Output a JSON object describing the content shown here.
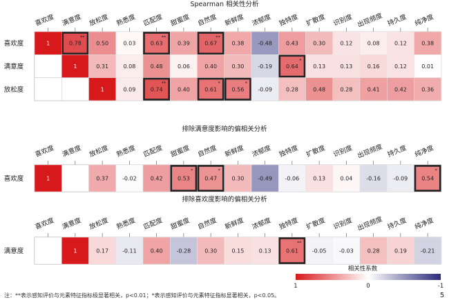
{
  "chart_data": [
    {
      "type": "heatmap",
      "title": "Spearman 相关性分析",
      "columns": [
        "喜欢度",
        "满意度",
        "放松度",
        "熟悉度",
        "匹配度",
        "甜蜜度",
        "自然度",
        "新鲜度",
        "浓郁度",
        "独特度",
        "扩散度",
        "识别度",
        "出现频度",
        "持久度",
        "纯净度"
      ],
      "rows": [
        {
          "label": "喜欢度",
          "values": [
            "1",
            "0.78",
            "0.50",
            "0.03",
            "0.63",
            "0.39",
            "0.67",
            "0.38",
            "-0.48",
            "0.43",
            "0.30",
            "0.12",
            "0.08",
            "0.12",
            "0.38"
          ],
          "marks": {
            "1": "**",
            "4": "**",
            "6": "**"
          }
        },
        {
          "label": "满意度",
          "values": [
            "",
            "1",
            "0.31",
            "0.08",
            "0.48",
            "0.06",
            "0.40",
            "0.30",
            "-0.19",
            "0.64",
            "0.13",
            "0.13",
            "0.16",
            "0.12",
            "0.01"
          ],
          "marks": {
            "9": "*"
          }
        },
        {
          "label": "放松度",
          "values": [
            "",
            "",
            "1",
            "0.09",
            "0.74",
            "0.40",
            "0.61",
            "0.56",
            "-0.09",
            "0.28",
            "0.48",
            "0.28",
            "0.41",
            "0.42",
            "0.36"
          ],
          "marks": {
            "4": "**",
            "6": "*",
            "7": "*"
          }
        }
      ]
    },
    {
      "type": "heatmap",
      "title": "排除满意度影响的偏相关分析",
      "columns": [
        "喜欢度",
        "满意度",
        "放松度",
        "熟悉度",
        "匹配度",
        "甜蜜度",
        "自然度",
        "新鲜度",
        "浓郁度",
        "独特度",
        "扩散度",
        "识别度",
        "出现频度",
        "持久度",
        "纯净度"
      ],
      "rows": [
        {
          "label": "喜欢度",
          "values": [
            "1",
            "",
            "0.37",
            "-0.02",
            "0.42",
            "0.53",
            "0.47",
            "0.30",
            "-0.49",
            "-0.06",
            "0.13",
            "0.04",
            "-0.16",
            "-0.09",
            "0.54"
          ],
          "marks": {
            "5": "*",
            "6": "*",
            "14": "*"
          }
        }
      ]
    },
    {
      "type": "heatmap",
      "title": "排除喜欢度影响的偏相关分析",
      "columns": [
        "喜欢度",
        "满意度",
        "放松度",
        "熟悉度",
        "匹配度",
        "甜蜜度",
        "自然度",
        "新鲜度",
        "浓郁度",
        "独特度",
        "扩散度",
        "识别度",
        "出现频度",
        "持久度",
        "纯净度"
      ],
      "rows": [
        {
          "label": "满意度",
          "values": [
            "",
            "1",
            "0.17",
            "-0.11",
            "0.40",
            "-0.28",
            "0.30",
            "0.15",
            "0.13",
            "0.61",
            "-0.05",
            "-0.03",
            "0.28",
            "0.19",
            "-0.21"
          ],
          "marks": {
            "9": "**"
          }
        }
      ]
    }
  ],
  "legend": {
    "title": "相关性系数",
    "ticks": [
      "1",
      "0",
      "-1"
    ]
  },
  "footnote": "注：**表示感知评价与元素特征指标极显著相关，p<0.01；*表示感知评价与元素特征指标显著相关，p<0.05。",
  "page_number": "5",
  "colors": {
    "positive": "#d7191c",
    "zero": "#ffffff",
    "negative": "#2b2b7a",
    "grid": "#bbbbbb",
    "highlight": "#222222"
  }
}
